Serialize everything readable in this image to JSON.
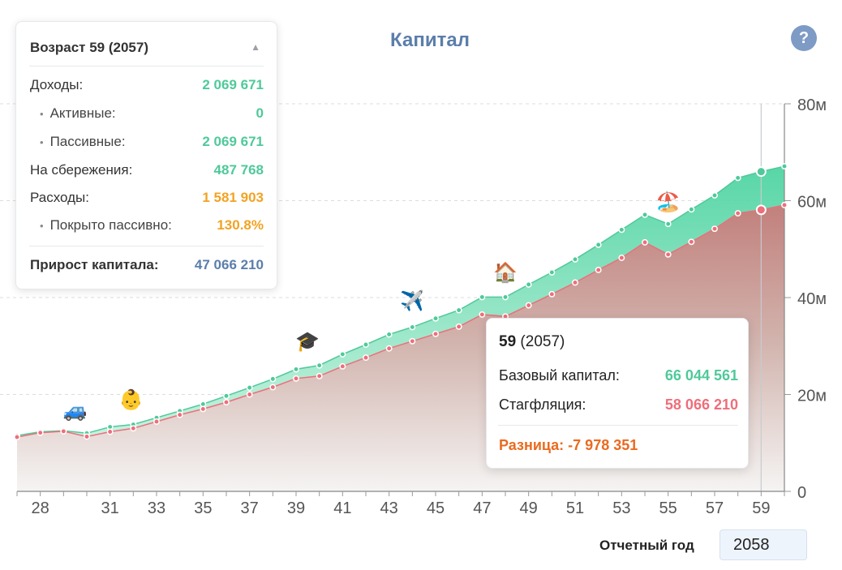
{
  "title": "Капитал",
  "help": {
    "label": "?"
  },
  "summary": {
    "header": "Возраст 59 (2057)",
    "collapse_glyph": "▲",
    "rows": [
      {
        "label": "Доходы:",
        "value": "2 069 671",
        "indent": false,
        "color": "#4fc99a"
      },
      {
        "label": "Активные:",
        "value": "0",
        "indent": true,
        "color": "#4fc99a"
      },
      {
        "label": "Пассивные:",
        "value": "2 069 671",
        "indent": true,
        "color": "#4fc99a"
      },
      {
        "label": "На сбережения:",
        "value": "487 768",
        "indent": false,
        "color": "#4fc99a"
      },
      {
        "label": "Расходы:",
        "value": "1 581 903",
        "indent": false,
        "color": "#f2a323"
      },
      {
        "label": "Покрыто пассивно:",
        "value": "130.8%",
        "indent": true,
        "color": "#f2a323"
      }
    ],
    "total_label": "Прирост капитала:",
    "total_value": "47 066 210"
  },
  "tooltip": {
    "age": "59",
    "year": "(2057)",
    "base_label": "Базовый капитал:",
    "base_value": "66 044 561",
    "stag_label": "Стагфляция:",
    "stag_value": "58 066 210",
    "diff_label": "Разница: -7 978 351"
  },
  "report": {
    "label": "Отчетный год",
    "value": "2058"
  },
  "chart_data": {
    "type": "area",
    "x": [
      27,
      28,
      29,
      30,
      31,
      32,
      33,
      34,
      35,
      36,
      37,
      38,
      39,
      40,
      41,
      42,
      43,
      44,
      45,
      46,
      47,
      48,
      49,
      50,
      51,
      52,
      53,
      54,
      55,
      56,
      57,
      58,
      59,
      60
    ],
    "x_tick_labels": [
      "28",
      "31",
      "33",
      "35",
      "37",
      "39",
      "41",
      "43",
      "45",
      "47",
      "49",
      "51",
      "53",
      "55",
      "57",
      "59"
    ],
    "y_tick_labels": [
      "0",
      "20м",
      "40м",
      "60м",
      "80м"
    ],
    "ylim": [
      0,
      80
    ],
    "y_unit": "м",
    "series": [
      {
        "values": [
          11.5,
          12.3,
          12.5,
          12.0,
          13.3,
          13.8,
          15.2,
          16.6,
          18.0,
          19.7,
          21.4,
          23.2,
          25.2,
          26.0,
          28.3,
          30.3,
          32.4,
          33.9,
          35.7,
          37.4,
          40.1,
          40.1,
          42.7,
          45.2,
          47.9,
          50.9,
          54.0,
          57.1,
          55.2,
          58.2,
          61.1,
          64.7,
          66.0,
          67.1
        ],
        "color": "#4fc99a"
      },
      {
        "values": [
          11.2,
          12.1,
          12.4,
          11.3,
          12.3,
          13.0,
          14.4,
          15.8,
          17.0,
          18.4,
          20.0,
          21.5,
          23.3,
          23.8,
          25.8,
          27.6,
          29.5,
          31.0,
          32.5,
          34.0,
          36.5,
          36.1,
          38.4,
          40.7,
          43.1,
          45.7,
          48.2,
          51.4,
          48.9,
          51.5,
          54.2,
          57.4,
          58.1,
          59.1
        ],
        "color": "#ee6e7a"
      }
    ],
    "highlight_x": 59,
    "grid": true,
    "events": [
      {
        "x": 29.5,
        "y": 16.5,
        "icon": "🚙",
        "name": "car-icon"
      },
      {
        "x": 31.9,
        "y": 18.8,
        "icon": "👶",
        "name": "baby-icon"
      },
      {
        "x": 39.5,
        "y": 30.8,
        "icon": "🎓",
        "name": "graduation-cap-icon"
      },
      {
        "x": 44.0,
        "y": 39.2,
        "icon": "✈️",
        "name": "airplane-icon"
      },
      {
        "x": 48.0,
        "y": 45.0,
        "icon": "🏠",
        "name": "house-icon"
      },
      {
        "x": 55.0,
        "y": 59.5,
        "icon": "🏖️",
        "name": "beach-icon"
      }
    ]
  }
}
